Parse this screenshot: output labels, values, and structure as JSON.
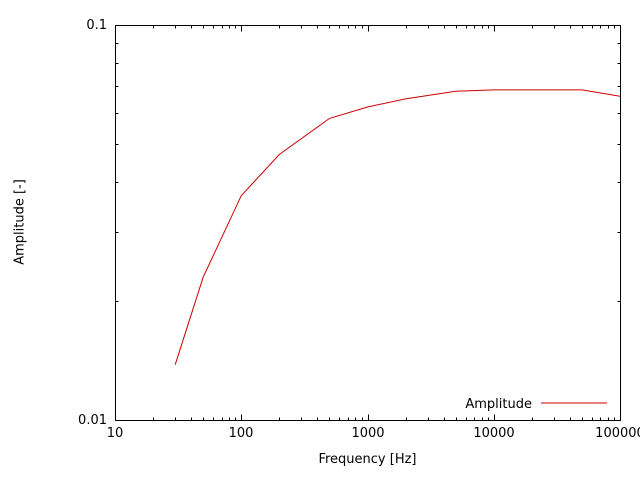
{
  "chart_data": {
    "type": "line",
    "title": "",
    "xlabel": "Frequency [Hz]",
    "ylabel": "Amplitude [-]",
    "x_scale": "log",
    "y_scale": "log",
    "xlim": [
      10,
      100000
    ],
    "ylim": [
      0.01,
      0.1
    ],
    "x_major_ticks": [
      10,
      100,
      1000,
      10000,
      100000
    ],
    "x_tick_labels": [
      "10",
      "100",
      "1000",
      "10000",
      "100000"
    ],
    "y_major_ticks": [
      0.01,
      0.1
    ],
    "y_tick_labels": [
      "0.01",
      "0.1"
    ],
    "grid": false,
    "legend": {
      "label": "Amplitude",
      "position": "bottom-right"
    },
    "colors": {
      "axis": "#000000",
      "text": "#000000",
      "series": "#cc0000"
    },
    "series": [
      {
        "name": "Amplitude",
        "color": "#cc0000",
        "x": [
          30,
          50,
          100,
          200,
          500,
          1000,
          2000,
          5000,
          10000,
          20000,
          50000,
          100000
        ],
        "y": [
          0.0138,
          0.023,
          0.037,
          0.047,
          0.058,
          0.062,
          0.065,
          0.068,
          0.0685,
          0.0685,
          0.0685,
          0.066
        ]
      }
    ]
  }
}
